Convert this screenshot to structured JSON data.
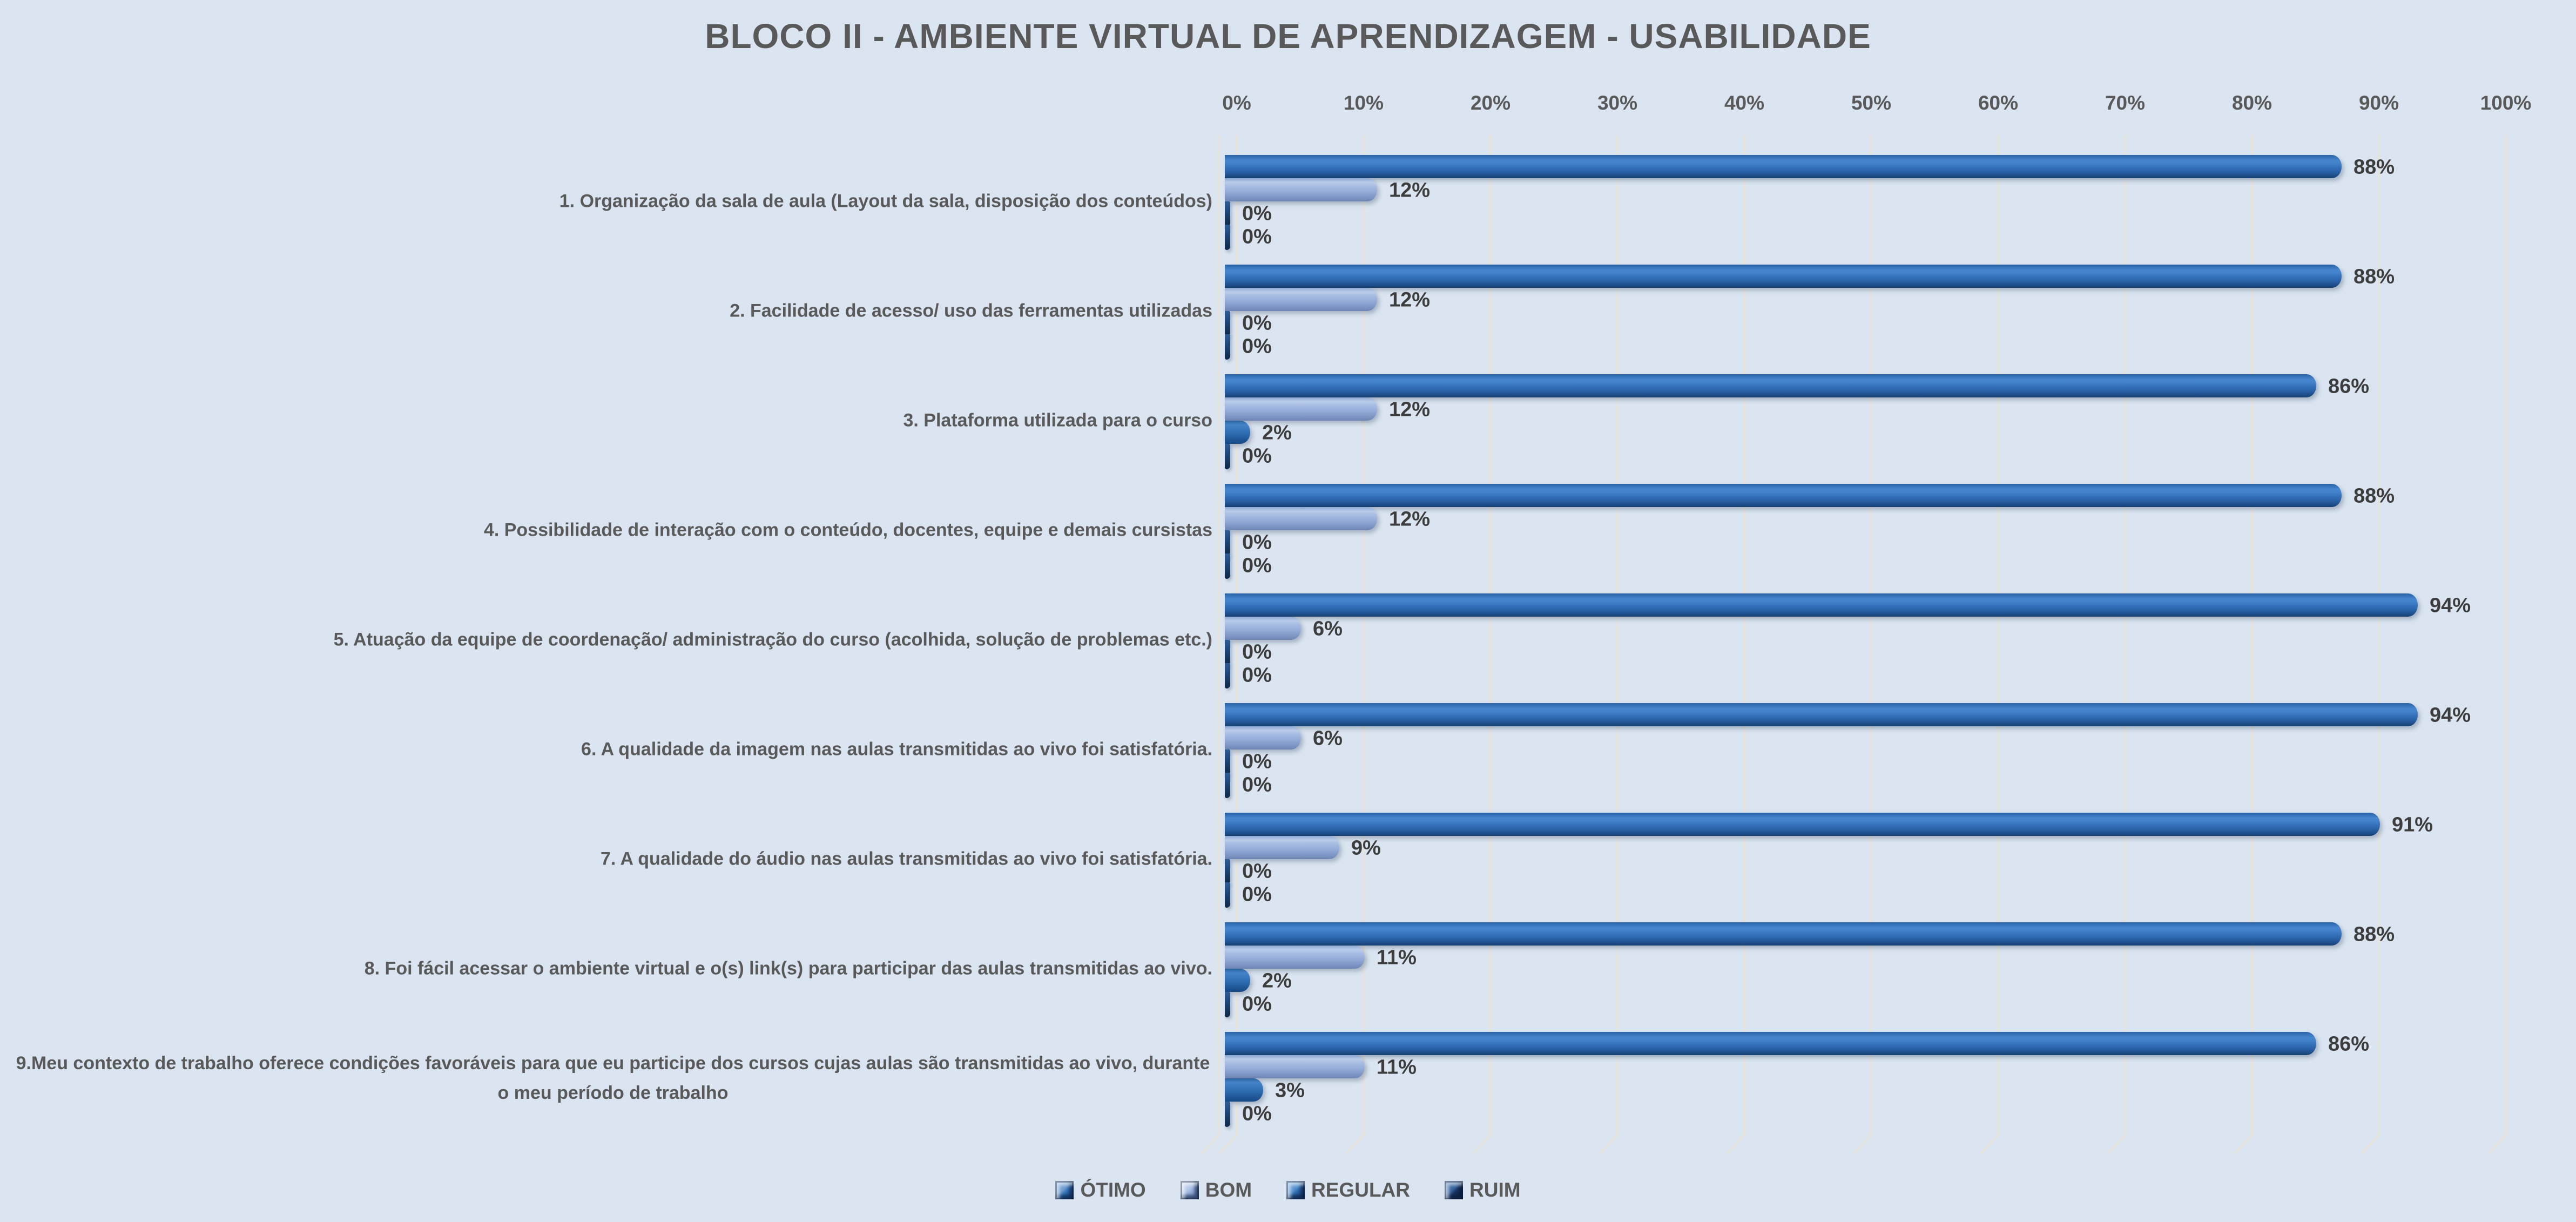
{
  "title": "BLOCO II - AMBIENTE VIRTUAL DE APRENDIZAGEM - USABILIDADE",
  "colors": {
    "background": "#DBE5F1",
    "gridline": "#E6E3DB",
    "title_text": "#595959",
    "category_text": "#595959",
    "tick_text": "#595959",
    "value_text": "#3D3D3D",
    "legend_text": "#595959"
  },
  "chart_data": {
    "type": "bar",
    "orientation": "horizontal",
    "title": "BLOCO II - AMBIENTE VIRTUAL DE APRENDIZAGEM - USABILIDADE",
    "categories": [
      "1. Organização da sala de aula (Layout da sala, disposição dos conteúdos)",
      "2. Facilidade de acesso/ uso das ferramentas utilizadas",
      "3. Plataforma utilizada para o curso",
      "4. Possibilidade de interação com o conteúdo, docentes, equipe e demais cursistas",
      "5. Atuação da equipe de coordenação/ administração do curso (acolhida, solução de problemas etc.)",
      "6. A qualidade da imagem nas aulas transmitidas ao vivo foi satisfatória.",
      "7. A qualidade do áudio nas aulas transmitidas ao vivo foi satisfatória.",
      "8. Foi fácil acessar o ambiente virtual e o(s) link(s) para participar das aulas transmitidas ao vivo.",
      "9.Meu contexto de trabalho oferece condições favoráveis para que eu participe dos cursos cujas aulas são transmitidas ao vivo, durante o meu período de trabalho"
    ],
    "series": [
      {
        "name": "ÓTIMO",
        "color": "#2E73B8",
        "values": [
          88,
          88,
          86,
          88,
          94,
          94,
          91,
          88,
          86
        ]
      },
      {
        "name": "BOM",
        "color": "#93ACD8",
        "values": [
          12,
          12,
          12,
          12,
          6,
          6,
          9,
          11,
          11
        ]
      },
      {
        "name": "REGULAR",
        "color": "#2A67AB",
        "values": [
          0,
          0,
          2,
          0,
          0,
          0,
          0,
          2,
          3
        ]
      },
      {
        "name": "RUIM",
        "color": "#16335C",
        "values": [
          0,
          0,
          0,
          0,
          0,
          0,
          0,
          0,
          0
        ]
      }
    ],
    "value_label_suffix": "%",
    "x_ticks": [
      "0%",
      "10%",
      "20%",
      "30%",
      "40%",
      "50%",
      "60%",
      "70%",
      "80%",
      "90%",
      "100%"
    ],
    "xlim": [
      0,
      100
    ],
    "grid": true,
    "legend_position": "bottom"
  }
}
